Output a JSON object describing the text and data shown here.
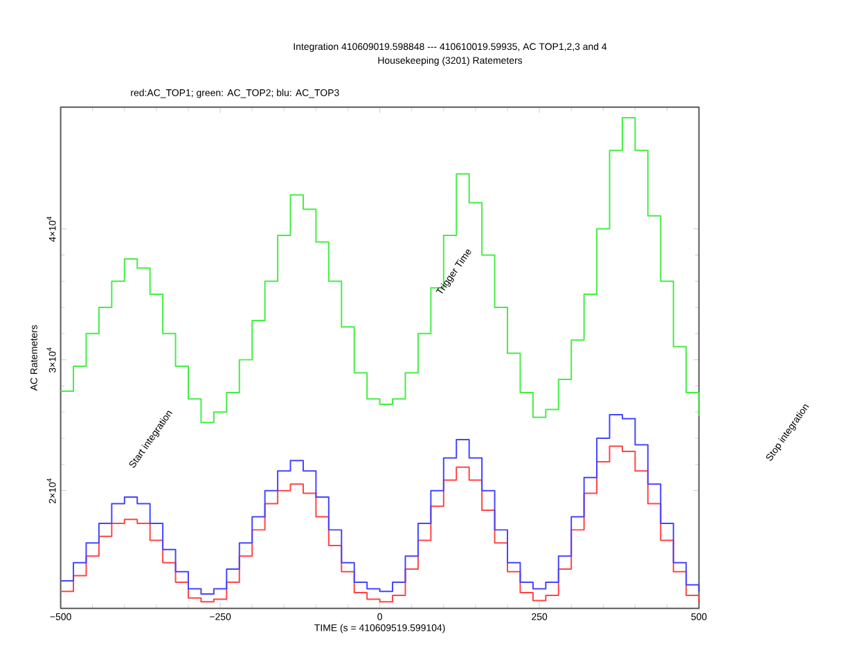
{
  "chart_data": {
    "type": "step",
    "title": "Integration 410609019.598848 --- 410610019.59935, AC TOP1,2,3 and 4",
    "subtitle": "Housekeeping (3201) Ratemeters",
    "xlabel": "TIME (s = 410609519.599104)",
    "ylabel": "AC Ratemeters",
    "annotations": [
      "red:AC_TOP1; green: AC_TOP2; blu: AC_TOP3",
      "Start integration",
      "Trigger Time",
      "Stop integration"
    ],
    "x": [
      -500,
      -480,
      -460,
      -440,
      -420,
      -400,
      -380,
      -360,
      -340,
      -320,
      -300,
      -280,
      -260,
      -240,
      -220,
      -200,
      -180,
      -160,
      -140,
      -120,
      -100,
      -80,
      -60,
      -40,
      -20,
      0,
      20,
      40,
      60,
      80,
      100,
      120,
      140,
      160,
      180,
      200,
      220,
      240,
      260,
      280,
      300,
      320,
      340,
      360,
      380,
      400,
      420,
      440,
      460,
      480,
      500
    ],
    "series": [
      {
        "color": "#ff4444",
        "values": [
          12300,
          13500,
          15000,
          16500,
          17500,
          17800,
          17500,
          16200,
          14500,
          13000,
          11800,
          11500,
          11700,
          13000,
          15000,
          17000,
          19000,
          20000,
          20500,
          19800,
          18000,
          15800,
          13800,
          12200,
          11700,
          11500,
          12000,
          14000,
          16200,
          18800,
          20800,
          21800,
          20800,
          18500,
          16000,
          13800,
          12200,
          11600,
          12000,
          14000,
          17000,
          19800,
          22200,
          23400,
          23000,
          21500,
          19000,
          16200,
          13800,
          12000,
          11500
        ]
      },
      {
        "color": "#44ee44",
        "values": [
          27600,
          29500,
          32000,
          34000,
          36000,
          37700,
          37000,
          35000,
          32000,
          29500,
          27000,
          25200,
          26000,
          27500,
          30000,
          33000,
          36000,
          39500,
          42600,
          41500,
          39000,
          36000,
          32500,
          29000,
          27000,
          26600,
          27000,
          29000,
          32000,
          35500,
          39500,
          44200,
          42000,
          38000,
          34000,
          30500,
          27500,
          25600,
          26200,
          28500,
          31500,
          35000,
          40000,
          46000,
          48500,
          46000,
          41000,
          36000,
          31000,
          27500,
          25700
        ]
      },
      {
        "color": "#4444ff",
        "values": [
          13100,
          14500,
          16000,
          17500,
          19000,
          19500,
          19000,
          17500,
          15500,
          13800,
          12500,
          12100,
          12500,
          14000,
          16000,
          18000,
          20000,
          21500,
          22300,
          21500,
          19500,
          17000,
          14500,
          13000,
          12500,
          12300,
          13000,
          15000,
          17500,
          20000,
          22500,
          23900,
          22500,
          20000,
          17000,
          14500,
          13000,
          12500,
          13000,
          15000,
          18000,
          21000,
          24000,
          25800,
          25500,
          23500,
          20500,
          17500,
          14500,
          12800,
          12300
        ]
      }
    ],
    "xlim": [
      -500,
      500
    ],
    "ylim": [
      11000,
      49300
    ],
    "xticks": [
      {
        "value": -500,
        "label": "−500"
      },
      {
        "value": -250,
        "label": "−250"
      },
      0,
      250,
      500
    ],
    "yticks": [
      {
        "value": 20000,
        "label": "2×10$^{4}$"
      },
      {
        "value": 30000,
        "label": "3×10$^{4}$"
      },
      {
        "value": 40000,
        "label": "4×10$^{4}$"
      }
    ],
    "grid": false
  }
}
